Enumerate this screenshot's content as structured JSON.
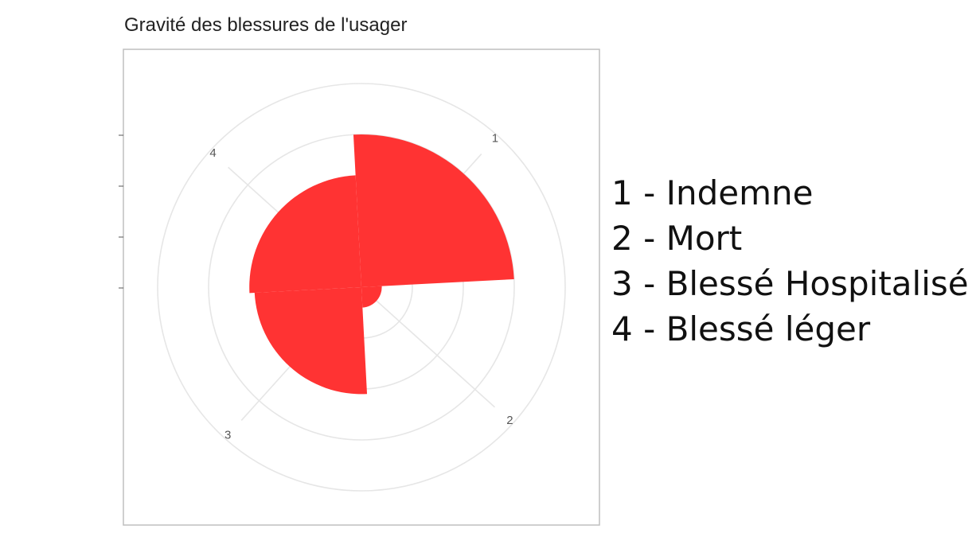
{
  "chart_data": {
    "type": "polar-bar",
    "title": "Gravité des blessures de l'usager",
    "categories": [
      "1",
      "2",
      "3",
      "4"
    ],
    "values": [
      1.5,
      0.2,
      1.05,
      1.1
    ],
    "rlim": [
      0,
      2
    ],
    "grid": true,
    "legend_position": "right",
    "legend": [
      {
        "code": "1",
        "label": "1 - Indemne"
      },
      {
        "code": "2",
        "label": "2 - Mort"
      },
      {
        "code": "3",
        "label": "3 - Blessé Hospitalisé"
      },
      {
        "code": "4",
        "label": "4 - Blessé léger"
      }
    ],
    "bar_color": "#ff3333",
    "grid_color": "#e6e6e6",
    "panel_border_color": "#bfbfbf"
  }
}
